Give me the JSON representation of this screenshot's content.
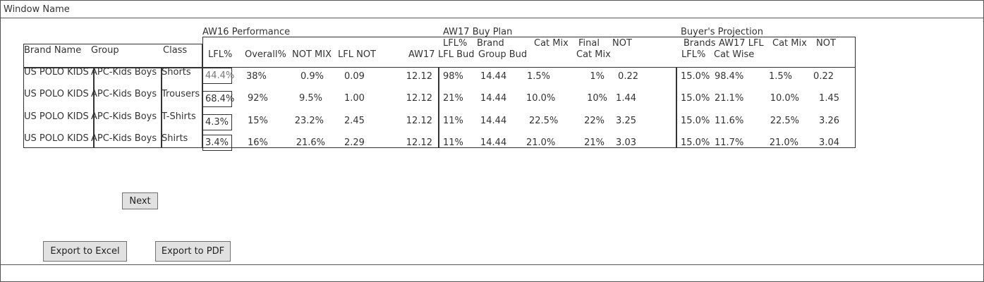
{
  "window": {
    "title": "Window Name"
  },
  "groups": {
    "aw16": "AW16 Performance",
    "aw17": "AW17 Buy Plan",
    "buyer": "Buyer's Projection"
  },
  "left_headers": {
    "brand": "Brand Name",
    "group": "Group",
    "class": "Class"
  },
  "headers": {
    "lfl": "LFL%",
    "overall": "Overall%",
    "not_mix": "NOT MIX",
    "lfl_not": "LFL NOT",
    "aw17": "AW17",
    "lfl_bud_1": "LFL%",
    "lfl_bud_2": "LFL Bud",
    "brand_bud_1": "Brand",
    "brand_bud_2": "Group Bud",
    "cat_mix": "Cat Mix",
    "final_1": "Final",
    "final_2": "Cat Mix",
    "not": "NOT",
    "brands_1": "Brands",
    "brands_2": "LFL%",
    "aw17lfl_1": "AW17 LFL",
    "aw17lfl_2": "Cat Wise",
    "bp_cat_mix": "Cat Mix",
    "bp_not": "NOT"
  },
  "rows": [
    {
      "brand": "US POLO KIDS",
      "group": "APC-Kids Boys",
      "class": "Shorts",
      "lfl": "44.4%",
      "overall": "38%",
      "not_mix": "0.9%",
      "lfl_not": "0.09",
      "aw17": "12.12",
      "lfl_bud": "98%",
      "brand_bud": "14.44",
      "cat_mix": "1.5%",
      "final": "1%",
      "not": "0.22",
      "brands": "15.0%",
      "aw17lfl": "98.4%",
      "bp_cat_mix": "1.5%",
      "bp_not": "0.22"
    },
    {
      "brand": "US POLO KIDS",
      "group": "APC-Kids Boys",
      "class": "Trousers",
      "lfl": "68.4%",
      "overall": "92%",
      "not_mix": "9.5%",
      "lfl_not": "1.00",
      "aw17": "12.12",
      "lfl_bud": "21%",
      "brand_bud": "14.44",
      "cat_mix": "10.0%",
      "final": "10%",
      "not": "1.44",
      "brands": "15.0%",
      "aw17lfl": "21.1%",
      "bp_cat_mix": "10.0%",
      "bp_not": "1.45"
    },
    {
      "brand": "US POLO KIDS",
      "group": "APC-Kids Boys",
      "class": "T-Shirts",
      "lfl": "4.3%",
      "overall": "15%",
      "not_mix": "23.2%",
      "lfl_not": "2.45",
      "aw17": "12.12",
      "lfl_bud": "11%",
      "brand_bud": "14.44",
      "cat_mix": "22.5%",
      "final": "22%",
      "not": "3.25",
      "brands": "15.0%",
      "aw17lfl": "11.6%",
      "bp_cat_mix": "22.5%",
      "bp_not": "3.26"
    },
    {
      "brand": "US POLO KIDS",
      "group": "APC-Kids Boys",
      "class": "Shirts",
      "lfl": "3.4%",
      "overall": "16%",
      "not_mix": "21.6%",
      "lfl_not": "2.29",
      "aw17": "12.12",
      "lfl_bud": "11%",
      "brand_bud": "14.44",
      "cat_mix": "21.0%",
      "final": "21%",
      "not": "3.03",
      "brands": "15.0%",
      "aw17lfl": "11.7%",
      "bp_cat_mix": "21.0%",
      "bp_not": "3.04"
    }
  ],
  "buttons": {
    "next": "Next",
    "export_excel": "Export to Excel",
    "export_pdf": "Export to PDF"
  }
}
